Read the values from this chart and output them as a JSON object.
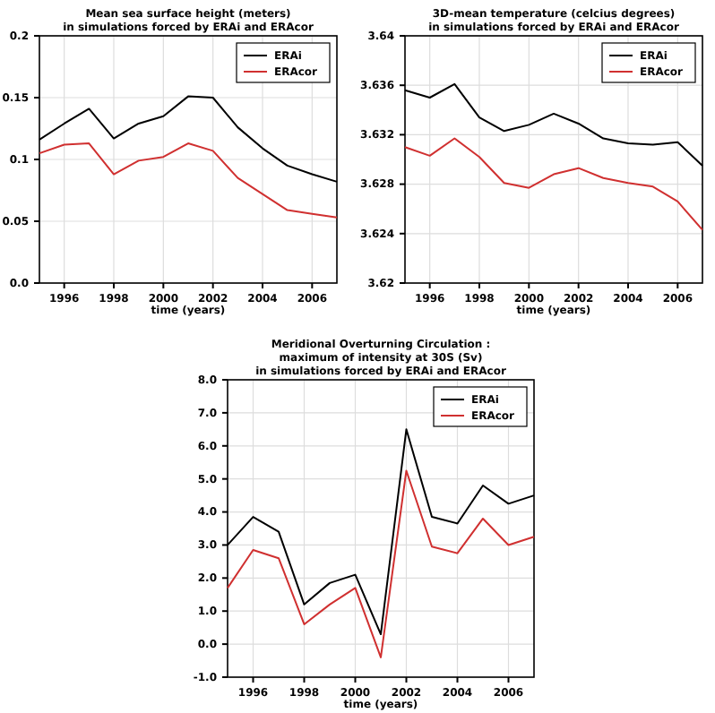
{
  "chart_data": [
    {
      "type": "line",
      "title": "Mean sea surface height (meters)\nin simulations forced by ERAi and ERAcor",
      "xlabel": "time (years)",
      "x": [
        1995,
        1996,
        1997,
        1998,
        1999,
        2000,
        2001,
        2002,
        2003,
        2004,
        2005,
        2006,
        2007
      ],
      "xlim": [
        1995,
        2007
      ],
      "xticks": [
        1996,
        1998,
        2000,
        2002,
        2004,
        2006
      ],
      "ylim": [
        0,
        0.2
      ],
      "yticks": [
        {
          "value": 0,
          "label": "0.0"
        },
        0.05,
        0.1,
        0.15,
        0.2
      ],
      "grid": true,
      "legend": "top right",
      "series": [
        {
          "name": "ERAi",
          "color": "#000000",
          "values": [
            0.116,
            0.129,
            0.141,
            0.117,
            0.129,
            0.135,
            0.151,
            0.15,
            0.126,
            0.109,
            0.095,
            0.088,
            0.082
          ]
        },
        {
          "name": "ERAcor",
          "color": "#d03030",
          "values": [
            0.105,
            0.112,
            0.113,
            0.088,
            0.099,
            0.102,
            0.113,
            0.107,
            0.085,
            0.072,
            0.059,
            0.056,
            0.053
          ]
        }
      ]
    },
    {
      "type": "line",
      "title": "3D-mean temperature (celcius degrees)\nin simulations forced by ERAi and ERAcor",
      "xlabel": "time (years)",
      "x": [
        1995,
        1996,
        1997,
        1998,
        1999,
        2000,
        2001,
        2002,
        2003,
        2004,
        2005,
        2006,
        2007
      ],
      "xlim": [
        1995,
        2007
      ],
      "xticks": [
        1996,
        1998,
        2000,
        2002,
        2004,
        2006
      ],
      "ylim": [
        3.62,
        3.64
      ],
      "yticks": [
        3.62,
        3.624,
        3.628,
        3.632,
        3.636,
        3.64
      ],
      "grid": true,
      "legend": "top right",
      "series": [
        {
          "name": "ERAi",
          "color": "#000000",
          "values": [
            3.6356,
            3.635,
            3.6361,
            3.6334,
            3.6323,
            3.6328,
            3.6337,
            3.6329,
            3.6317,
            3.6313,
            3.6312,
            3.6314,
            3.6295
          ]
        },
        {
          "name": "ERAcor",
          "color": "#d03030",
          "values": [
            3.631,
            3.6303,
            3.6317,
            3.6302,
            3.6281,
            3.6277,
            3.6288,
            3.6293,
            3.6285,
            3.6281,
            3.6278,
            3.6266,
            3.6243
          ]
        }
      ]
    },
    {
      "type": "line",
      "title": "Meridional Overturning Circulation :\nmaximum of intensity at 30S (Sv)\nin simulations forced by ERAi and ERAcor",
      "xlabel": "time (years)",
      "x": [
        1995,
        1996,
        1997,
        1998,
        1999,
        2000,
        2001,
        2002,
        2003,
        2004,
        2005,
        2006,
        2007
      ],
      "xlim": [
        1995,
        2007
      ],
      "xticks": [
        1996,
        1998,
        2000,
        2002,
        2004,
        2006
      ],
      "ylim": [
        -1,
        8
      ],
      "yticks": [
        {
          "value": -1,
          "label": "-1.0"
        },
        {
          "value": 0,
          "label": "0.0"
        },
        {
          "value": 1,
          "label": "1.0"
        },
        {
          "value": 2,
          "label": "2.0"
        },
        {
          "value": 3,
          "label": "3.0"
        },
        {
          "value": 4,
          "label": "4.0"
        },
        {
          "value": 5,
          "label": "5.0"
        },
        {
          "value": 6,
          "label": "6.0"
        },
        {
          "value": 7,
          "label": "7.0"
        },
        {
          "value": 8,
          "label": "8.0"
        }
      ],
      "grid": true,
      "legend": "top right",
      "series": [
        {
          "name": "ERAi",
          "color": "#000000",
          "values": [
            3.0,
            3.85,
            3.4,
            1.2,
            1.85,
            2.1,
            0.3,
            6.5,
            3.85,
            3.65,
            4.8,
            4.25,
            4.5
          ]
        },
        {
          "name": "ERAcor",
          "color": "#d03030",
          "values": [
            1.7,
            2.85,
            2.6,
            0.6,
            1.2,
            1.7,
            -0.4,
            5.25,
            2.95,
            2.75,
            3.8,
            3.0,
            3.25
          ]
        }
      ]
    }
  ]
}
